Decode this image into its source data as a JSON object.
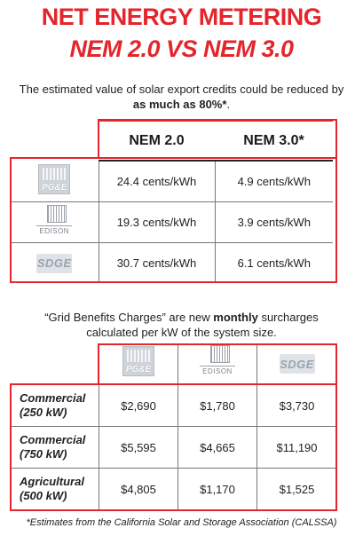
{
  "title_line1": "NET ENERGY METERING",
  "title_line2": "NEM 2.0 VS NEM 3.0",
  "intro": {
    "text": "The estimated value of solar export credits could be reduced by",
    "emphasis": "as much as 80%*",
    "suffix": "."
  },
  "table1": {
    "headers": [
      "NEM 2.0",
      "NEM 3.0*"
    ],
    "rows": [
      {
        "logo": "pge-logo",
        "logo_text": "PG&E",
        "nem2": "24.4 cents/kWh",
        "nem3": "4.9 cents/kWh"
      },
      {
        "logo": "edison-logo",
        "logo_text": "EDISON",
        "nem2": "19.3 cents/kWh",
        "nem3": "3.9 cents/kWh"
      },
      {
        "logo": "sdge-logo",
        "logo_text": "SDGE",
        "nem2": "30.7 cents/kWh",
        "nem3": "6.1 cents/kWh"
      }
    ]
  },
  "mid_text": {
    "part1": "“Grid Benefits Charges” are new",
    "bold": "monthly",
    "part2": "surcharges calculated per kW of the system size."
  },
  "table2": {
    "header_logos": [
      {
        "logo": "pge-logo",
        "logo_text": "PG&E"
      },
      {
        "logo": "edison-logo",
        "logo_text": "EDISON"
      },
      {
        "logo": "sdge-logo",
        "logo_text": "SDGE"
      }
    ],
    "rows": [
      {
        "label_line1": "Commercial",
        "label_line2": "(250 kW)",
        "pge": "$2,690",
        "edison": "$1,780",
        "sdge": "$3,730"
      },
      {
        "label_line1": "Commercial",
        "label_line2": "(750 kW)",
        "pge": "$5,595",
        "edison": "$4,665",
        "sdge": "$11,190"
      },
      {
        "label_line1": "Agricultural",
        "label_line2": "(500 kW)",
        "pge": "$4,805",
        "edison": "$1,170",
        "sdge": "$1,525"
      }
    ]
  },
  "footnote": "*Estimates from the California Solar and Storage Association (CALSSA)",
  "colors": {
    "accent": "#e4252b",
    "text": "#1a1a1a"
  }
}
